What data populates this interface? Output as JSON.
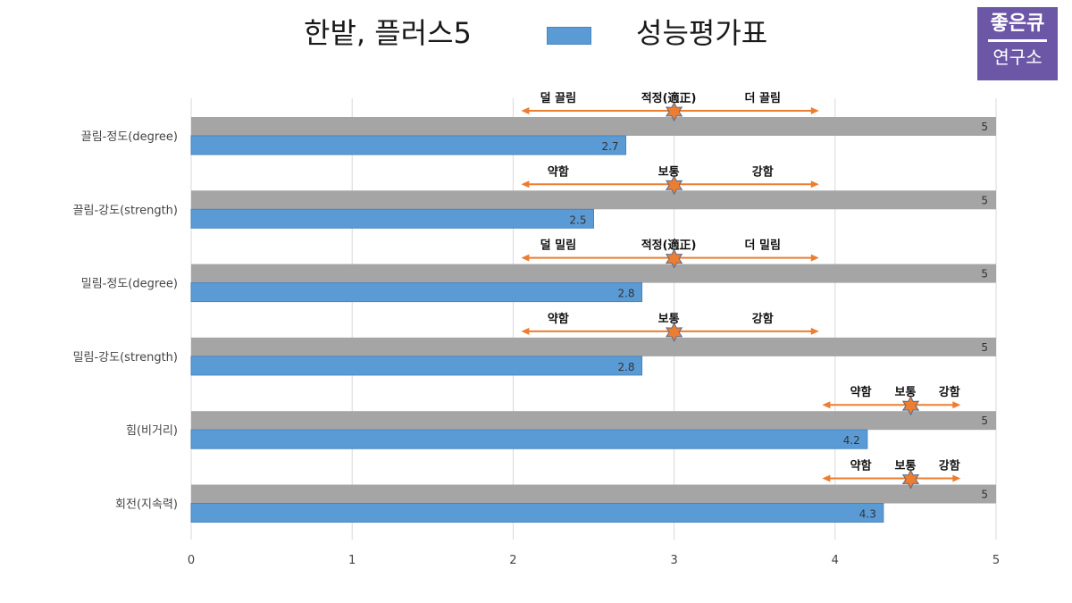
{
  "header": {
    "title": "한밭, 플러스5",
    "legend_label": "성능평가표",
    "legend_color": "#5b9bd5"
  },
  "brand": {
    "line1": "좋은큐",
    "line2": "연구소",
    "color": "#6c57a6"
  },
  "chart_data": {
    "type": "bar",
    "orientation": "horizontal",
    "categories": [
      "끌림-정도(degree)",
      "끌림-강도(strength)",
      "밀림-정도(degree)",
      "밀림-강도(strength)",
      "힘(비거리)",
      "회전(지속력)"
    ],
    "series": [
      {
        "color": "#a5a5a5",
        "values": [
          5,
          5,
          5,
          5,
          5,
          5
        ]
      },
      {
        "name": "성능평가표",
        "color": "#5b9bd5",
        "values": [
          2.7,
          2.5,
          2.8,
          2.8,
          4.2,
          4.3
        ]
      }
    ],
    "data_labels": {
      "max": [
        "5",
        "5",
        "5",
        "5",
        "5",
        "5"
      ],
      "value": [
        "2.7",
        "2.5",
        "2.8",
        "2.8",
        "4.2",
        "4.3"
      ]
    },
    "xlim": [
      0,
      5
    ],
    "xticks": [
      "0",
      "1",
      "2",
      "3",
      "4",
      "5"
    ],
    "grid": true,
    "legend_position": "top",
    "annotations": [
      {
        "left": "덜 끌림",
        "mid": "적정(適正)",
        "right": "더 끌림",
        "marker": 3,
        "arrow_left": 2.05,
        "arrow_right": 3.9
      },
      {
        "left": "약함",
        "mid": "보통",
        "right": "강함",
        "marker": 3,
        "arrow_left": 2.05,
        "arrow_right": 3.9
      },
      {
        "left": "덜 밀림",
        "mid": "적정(適正)",
        "right": "더 밀림",
        "marker": 3,
        "arrow_left": 2.05,
        "arrow_right": 3.9
      },
      {
        "left": "약함",
        "mid": "보통",
        "right": "강함",
        "marker": 3,
        "arrow_left": 2.05,
        "arrow_right": 3.9
      },
      {
        "left": "약함",
        "mid": "보통",
        "right": "강함",
        "marker": 4.47,
        "arrow_left": 3.92,
        "arrow_right": 4.78
      },
      {
        "left": "약함",
        "mid": "보통",
        "right": "강함",
        "marker": 4.47,
        "arrow_left": 3.92,
        "arrow_right": 4.78
      }
    ],
    "annotation_color": "#ed7d31",
    "marker_color": "#ed7d31"
  }
}
